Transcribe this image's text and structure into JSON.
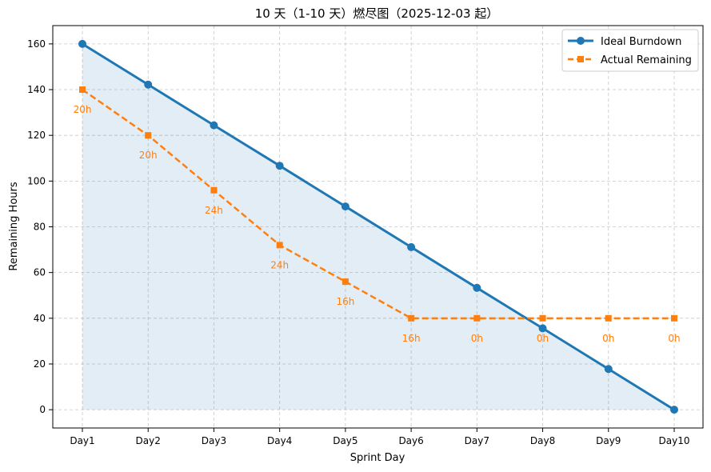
{
  "chart_data": {
    "type": "line",
    "title": "10 天（1-10 天）燃尽图（2025-12-03 起）",
    "xlabel": "Sprint Day",
    "ylabel": "Remaining Hours",
    "categories": [
      "Day1",
      "Day2",
      "Day3",
      "Day4",
      "Day5",
      "Day6",
      "Day7",
      "Day8",
      "Day9",
      "Day10"
    ],
    "ylim": [
      -8,
      168
    ],
    "yticks": [
      0,
      20,
      40,
      60,
      80,
      100,
      120,
      140,
      160
    ],
    "grid": true,
    "legend_position": "top-right",
    "series": [
      {
        "name": "Ideal Burndown",
        "color": "#1f77b4",
        "style": "solid",
        "marker": "circle",
        "fill": true,
        "values": [
          160,
          142.2,
          124.4,
          106.7,
          88.9,
          71.1,
          53.3,
          35.6,
          17.8,
          0
        ]
      },
      {
        "name": "Actual Remaining",
        "color": "#ff7f0e",
        "style": "dashed",
        "marker": "square",
        "fill": false,
        "values": [
          140,
          120,
          96,
          72,
          56,
          40,
          40,
          40,
          40,
          40
        ],
        "labels": [
          "20h",
          "20h",
          "24h",
          "24h",
          "16h",
          "16h",
          "0h",
          "0h",
          "0h",
          "0h"
        ]
      }
    ]
  }
}
